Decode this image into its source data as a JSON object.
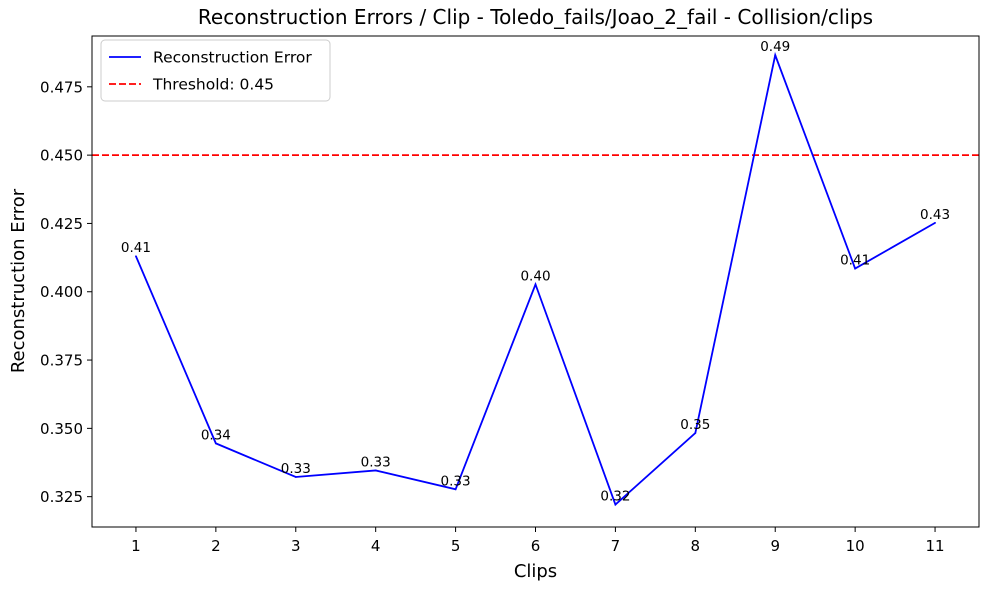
{
  "chart_data": {
    "type": "line",
    "title": "Reconstruction Errors / Clip - Toledo_fails/Joao_2_fail - Collision/clips",
    "xlabel": "Clips",
    "ylabel": "Reconstruction Error",
    "x": [
      1,
      2,
      3,
      4,
      5,
      6,
      7,
      8,
      9,
      10,
      11
    ],
    "xticks": [
      "1",
      "2",
      "3",
      "4",
      "5",
      "6",
      "7",
      "8",
      "9",
      "10",
      "11"
    ],
    "yticks": [
      "0.325",
      "0.350",
      "0.375",
      "0.400",
      "0.425",
      "0.450",
      "0.475"
    ],
    "xlim": [
      0.45,
      11.55
    ],
    "ylim": [
      0.3139,
      0.4936
    ],
    "grid": false,
    "legend_position": "top-left",
    "series": [
      {
        "name": "Reconstruction Error",
        "color": "#0000ff",
        "style": "solid",
        "values": [
          0.413,
          0.3445,
          0.3322,
          0.3346,
          0.3277,
          0.4027,
          0.3221,
          0.3483,
          0.4866,
          0.4085,
          0.4252
        ],
        "labels": [
          "0.41",
          "0.34",
          "0.33",
          "0.33",
          "0.33",
          "0.40",
          "0.32",
          "0.35",
          "0.49",
          "0.41",
          "0.43"
        ]
      }
    ],
    "threshold": {
      "name": "Threshold: 0.45",
      "value": 0.45,
      "color": "#ff0000",
      "style": "dashed"
    }
  }
}
